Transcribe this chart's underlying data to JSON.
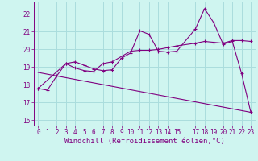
{
  "xlabel": "Windchill (Refroidissement éolien,°C)",
  "background_color": "#cff5f0",
  "grid_color": "#aadddd",
  "line_color": "#800080",
  "xlim": [
    -0.5,
    23.5
  ],
  "ylim": [
    15.7,
    22.7
  ],
  "yticks": [
    16,
    17,
    18,
    19,
    20,
    21,
    22
  ],
  "xticks": [
    0,
    1,
    2,
    3,
    4,
    5,
    6,
    7,
    8,
    9,
    10,
    11,
    12,
    13,
    14,
    15,
    17,
    18,
    19,
    20,
    21,
    22,
    23
  ],
  "series1_x": [
    0,
    1,
    2,
    3,
    4,
    5,
    6,
    7,
    8,
    9,
    10,
    11,
    12,
    13,
    14,
    15,
    17,
    18,
    19,
    20,
    21,
    22,
    23
  ],
  "series1_y": [
    17.8,
    17.7,
    18.5,
    19.2,
    19.3,
    19.1,
    18.9,
    18.8,
    18.85,
    19.5,
    19.8,
    21.05,
    20.85,
    19.9,
    19.85,
    19.9,
    21.15,
    22.3,
    21.5,
    20.3,
    20.45,
    18.65,
    16.45
  ],
  "series2_x": [
    0,
    3,
    4,
    5,
    6,
    7,
    8,
    10,
    11,
    12,
    13,
    14,
    15,
    17,
    18,
    19,
    20,
    21,
    22,
    23
  ],
  "series2_y": [
    17.8,
    19.2,
    18.95,
    18.8,
    18.75,
    19.2,
    19.3,
    19.9,
    19.95,
    19.95,
    20.0,
    20.1,
    20.2,
    20.35,
    20.45,
    20.4,
    20.35,
    20.5,
    20.5,
    20.45
  ],
  "series3_x": [
    0,
    23
  ],
  "series3_y": [
    18.7,
    16.45
  ],
  "font_color": "#800080",
  "tick_fontsize": 5.5,
  "label_fontsize": 6.5
}
